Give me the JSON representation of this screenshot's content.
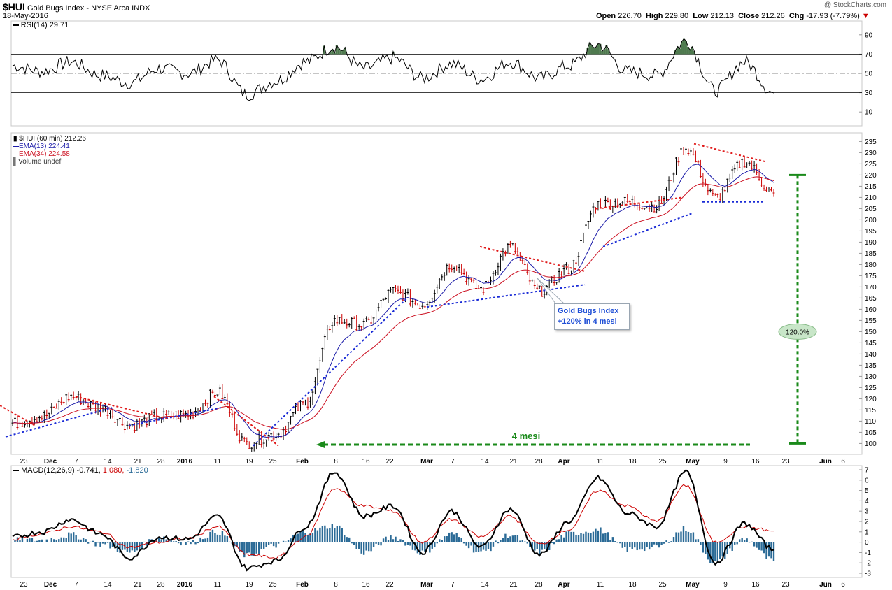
{
  "header": {
    "symbol": "$HUI",
    "name": "Gold Bugs Index - NYSE Arca",
    "exchange_type": "INDX",
    "date": "18-May-2016",
    "watermark": "@ StockCharts.com",
    "open_label": "Open",
    "open": "226.70",
    "high_label": "High",
    "high": "229.80",
    "low_label": "Low",
    "low": "212.13",
    "close_label": "Close",
    "close": "212.26",
    "chg_label": "Chg",
    "chg": "-17.93 (-7.79%)"
  },
  "rsi_legend": "RSI(14) 29.71",
  "price_legend": {
    "title": "$HUI (60 min) 212.26",
    "ema13": "EMA(13) 224.41",
    "ema34": "EMA(34) 224.58",
    "volume": "Volume undef"
  },
  "macd_legend": {
    "label": "MACD(12,26,9)",
    "v1": "-0.741,",
    "v2": "1.080,",
    "v3": "-1.820"
  },
  "annotation": {
    "line1": "Gold Bugs Index",
    "line2": "+120% in 4 mesi",
    "duration": "4 mesi",
    "percent": "120.0%"
  },
  "chart_data": {
    "type": "line",
    "title": "$HUI Gold Bugs Index - NYSE Arca INDX (60 min)",
    "x_tick_labels": [
      "23",
      "Dec",
      "7",
      "14",
      "21",
      "28",
      "2016",
      "11",
      "19",
      "25",
      "Feb",
      "8",
      "16",
      "22",
      "Mar",
      "7",
      "14",
      "21",
      "28",
      "Apr",
      "11",
      "18",
      "25",
      "May",
      "9",
      "16",
      "23",
      "Jun",
      "6"
    ],
    "price": {
      "ylim": [
        97,
        237
      ],
      "y_ticks": [
        100,
        105,
        110,
        115,
        120,
        125,
        130,
        135,
        140,
        145,
        150,
        155,
        160,
        165,
        170,
        175,
        180,
        185,
        190,
        195,
        200,
        205,
        210,
        215,
        220,
        225,
        230,
        235
      ],
      "dates": [
        "Nov 23",
        "Dec 1",
        "Dec 7",
        "Dec 14",
        "Dec 21",
        "Dec 28",
        "Jan 4",
        "Jan 11",
        "Jan 19",
        "Jan 25",
        "Feb 1",
        "Feb 8",
        "Feb 16",
        "Feb 22",
        "Mar 1",
        "Mar 7",
        "Mar 14",
        "Mar 21",
        "Mar 28",
        "Apr 4",
        "Apr 11",
        "Apr 18",
        "Apr 25",
        "May 2",
        "May 9",
        "May 16",
        "May 18"
      ],
      "close": [
        109,
        112,
        121,
        116,
        108,
        112,
        113,
        123,
        100,
        104,
        118,
        155,
        153,
        168,
        162,
        180,
        169,
        188,
        168,
        178,
        207,
        208,
        206,
        232,
        210,
        226,
        212
      ],
      "ema13": [
        110,
        111,
        117,
        115,
        110,
        111,
        112,
        119,
        103,
        105,
        116,
        147,
        152,
        165,
        164,
        176,
        171,
        183,
        172,
        178,
        202,
        206,
        205,
        227,
        215,
        224,
        224.41
      ],
      "ema34": [
        111,
        111,
        115,
        115,
        111,
        111,
        112,
        116,
        106,
        106,
        113,
        140,
        150,
        162,
        164,
        173,
        171,
        180,
        174,
        178,
        198,
        204,
        204,
        222,
        216,
        223,
        224.58
      ]
    },
    "rsi": {
      "ylim": [
        0,
        100
      ],
      "y_ticks": [
        10,
        30,
        50,
        70,
        90
      ],
      "levels": [
        30,
        70
      ],
      "values": [
        58,
        52,
        62,
        48,
        40,
        55,
        50,
        64,
        28,
        42,
        62,
        78,
        55,
        66,
        45,
        60,
        44,
        62,
        45,
        58,
        80,
        52,
        48,
        84,
        32,
        62,
        29.71
      ]
    },
    "macd": {
      "ylim": [
        -3,
        7
      ],
      "y_ticks": [
        -3,
        -2,
        -1,
        0,
        1,
        2,
        3,
        4,
        5,
        6,
        7
      ],
      "macd_line": [
        0.5,
        1,
        2.2,
        0.8,
        -1.5,
        0.5,
        0.3,
        2.5,
        -2.5,
        -1.8,
        1.5,
        6.8,
        2.5,
        3.5,
        -1,
        3,
        -0.5,
        3.2,
        -1.2,
        2,
        6.2,
        2.8,
        1.5,
        6.8,
        -2,
        1.8,
        -0.741
      ],
      "signal_line": [
        0.3,
        0.8,
        1.5,
        1,
        -0.5,
        0,
        0.4,
        1.5,
        -1.2,
        -1.5,
        0.5,
        5.2,
        3.5,
        3,
        0,
        2.2,
        0.5,
        2.5,
        -0.2,
        1.2,
        5,
        3.5,
        2,
        5.5,
        0,
        1.5,
        1.08
      ],
      "histogram": [
        0.2,
        0.2,
        0.7,
        -0.2,
        -1,
        0.5,
        -0.1,
        1,
        -1.3,
        -0.3,
        1,
        1.6,
        -1,
        0.5,
        -1,
        0.8,
        -1,
        0.7,
        -1,
        0.8,
        1.2,
        -0.7,
        -0.5,
        1.3,
        -2,
        0.3,
        -1.82
      ]
    },
    "trendline_text": [
      "Gold Bugs Index",
      "+120% in 4 mesi",
      "4 mesi",
      "120.0%"
    ],
    "colors": {
      "up": "#000000",
      "down": "#cc0000",
      "ema13": "#1a1aa8",
      "ema34": "#cc1122",
      "support": "#1a2bd6",
      "resistance": "#e01a1a",
      "measure": "#1a8a1a",
      "rsi_fill": "#4f7a4f",
      "hist": "#2a6a96"
    }
  }
}
